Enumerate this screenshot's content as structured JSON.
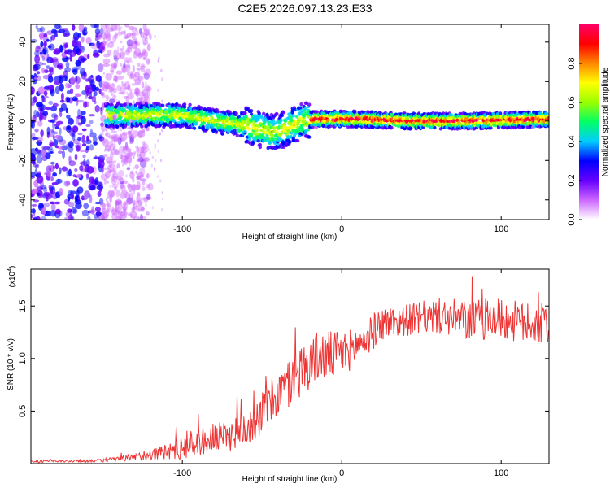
{
  "title": "C2E5.2026.097.13.23.E33",
  "colors": {
    "snr_line": "#ee3333",
    "axis": "#000000",
    "background": "#ffffff"
  },
  "chart_data": [
    {
      "type": "heatmap",
      "name": "spectrogram",
      "xlabel": "Height of straight line (km)",
      "ylabel": "Frequency (Hz)",
      "xlim": [
        -195,
        130
      ],
      "ylim": [
        -50,
        49
      ],
      "xticks": [
        -100,
        0,
        100
      ],
      "xtick_labels": [
        "-100",
        "0",
        "100"
      ],
      "yticks": [
        -40,
        -20,
        0,
        20,
        40
      ],
      "ytick_labels": [
        "-40",
        "-20",
        "0",
        "20",
        "40"
      ],
      "colorbar": {
        "label": "Normalized spectral amplitude",
        "range": [
          0,
          1
        ],
        "ticks": [
          0.0,
          0.2,
          0.4,
          0.6,
          0.8
        ],
        "tick_labels": [
          "0.0",
          "0.2",
          "0.4",
          "0.6",
          "0.8"
        ],
        "colormap": [
          "#ffffff",
          "#cc66ff",
          "#6600ff",
          "#0000ff",
          "#00ccff",
          "#00ff66",
          "#99ff00",
          "#ffff00",
          "#ff8800",
          "#ff0000",
          "#ff0066"
        ]
      },
      "band_center_hz": [
        [
          -145,
          3
        ],
        [
          -120,
          3
        ],
        [
          -100,
          3
        ],
        [
          -80,
          0
        ],
        [
          -60,
          -2
        ],
        [
          -45,
          -6
        ],
        [
          -35,
          -4
        ],
        [
          -25,
          0
        ],
        [
          -15,
          1
        ],
        [
          0,
          1
        ],
        [
          10,
          1
        ],
        [
          40,
          0
        ],
        [
          80,
          0
        ],
        [
          130,
          1
        ]
      ]
    },
    {
      "type": "line",
      "name": "snr",
      "xlabel": "Height of straight line (km)",
      "ylabel": "SNR (10 * v/v)",
      "multiplier": "(x10",
      "multiplier_exp": "4",
      "multiplier_close": ")",
      "xlim": [
        -195,
        130
      ],
      "ylim": [
        0,
        1.85
      ],
      "xticks": [
        -100,
        0,
        100
      ],
      "xtick_labels": [
        "-100",
        "0",
        "100"
      ],
      "yticks": [
        0.5,
        1.0,
        1.5
      ],
      "ytick_labels": [
        "0.5",
        "1.0",
        "1.5"
      ],
      "envelope": [
        [
          -195,
          0.02
        ],
        [
          -150,
          0.03
        ],
        [
          -130,
          0.06
        ],
        [
          -110,
          0.12
        ],
        [
          -90,
          0.22
        ],
        [
          -70,
          0.28
        ],
        [
          -55,
          0.42
        ],
        [
          -45,
          0.6
        ],
        [
          -35,
          0.75
        ],
        [
          -25,
          0.92
        ],
        [
          -15,
          1.05
        ],
        [
          -5,
          1.05
        ],
        [
          5,
          1.1
        ],
        [
          15,
          1.2
        ],
        [
          25,
          1.35
        ],
        [
          40,
          1.38
        ],
        [
          60,
          1.42
        ],
        [
          80,
          1.38
        ],
        [
          100,
          1.4
        ],
        [
          115,
          1.35
        ],
        [
          130,
          1.35
        ]
      ],
      "noise_amplitude": [
        [
          -195,
          0.01
        ],
        [
          -150,
          0.015
        ],
        [
          -120,
          0.05
        ],
        [
          -100,
          0.12
        ],
        [
          -70,
          0.15
        ],
        [
          -50,
          0.2
        ],
        [
          -30,
          0.25
        ],
        [
          -10,
          0.25
        ],
        [
          10,
          0.18
        ],
        [
          40,
          0.15
        ],
        [
          80,
          0.2
        ],
        [
          130,
          0.2
        ]
      ]
    }
  ]
}
